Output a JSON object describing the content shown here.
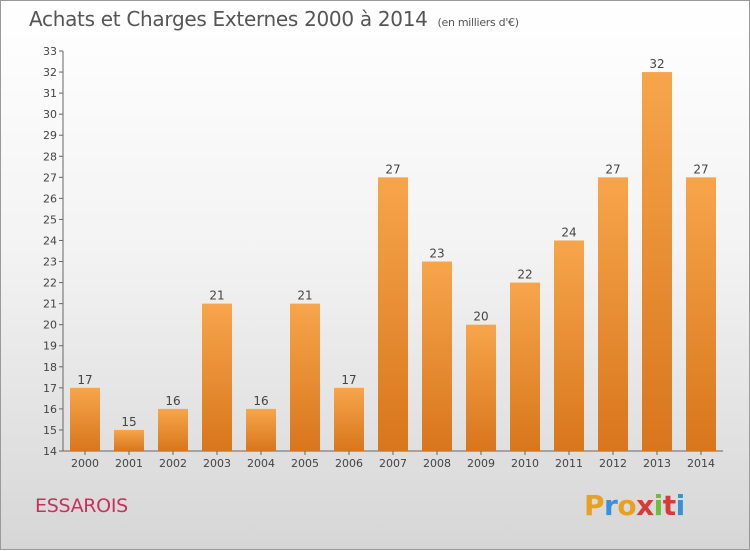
{
  "title": "Achats et Charges Externes 2000 à 2014",
  "unit": "(en milliers d'€)",
  "commune": "ESSAROIS",
  "logo": {
    "text": "Proxiti",
    "colors": [
      "#e8a020",
      "#3a8fd8",
      "#e8a020",
      "#d83a3a",
      "#6cbf3a",
      "#d83a3a",
      "#3a8fd8"
    ]
  },
  "colors": {
    "bar_top": "#f7a54b",
    "bar_bottom": "#d8761c",
    "axis": "#666666",
    "grid": "#d4d4d4",
    "text": "#444444",
    "commune": "#c8315e"
  },
  "chart_data": {
    "type": "bar",
    "categories": [
      "2000",
      "2001",
      "2002",
      "2003",
      "2004",
      "2005",
      "2006",
      "2007",
      "2008",
      "2009",
      "2010",
      "2011",
      "2012",
      "2013",
      "2014"
    ],
    "values": [
      17,
      15,
      16,
      21,
      16,
      21,
      17,
      27,
      23,
      20,
      22,
      24,
      27,
      32,
      27
    ],
    "ylim": [
      14,
      33
    ],
    "yticks": [
      14,
      15,
      16,
      17,
      18,
      19,
      20,
      21,
      22,
      23,
      24,
      25,
      26,
      27,
      28,
      29,
      30,
      31,
      32,
      33
    ],
    "grid": false,
    "data_labels": true
  }
}
